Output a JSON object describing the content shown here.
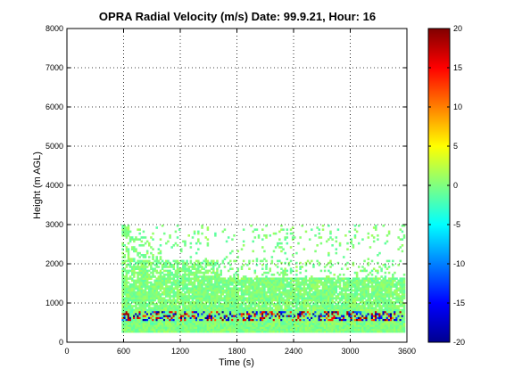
{
  "chart_data": {
    "type": "heatmap",
    "title": "OPRA Radial Velocity (m/s)  Date: 99.9.21, Hour: 16",
    "xlabel": "Time (s)",
    "ylabel": "Height (m AGL)",
    "xlim": [
      0,
      3600
    ],
    "ylim": [
      0,
      8000
    ],
    "x_ticks": [
      0,
      600,
      1200,
      1800,
      2400,
      3000,
      3600
    ],
    "y_ticks": [
      0,
      1000,
      2000,
      3000,
      4000,
      5000,
      6000,
      7000,
      8000
    ],
    "grid": true,
    "colorbar": {
      "min": -20,
      "max": 20,
      "ticks": [
        20,
        15,
        10,
        5,
        0,
        -5,
        -10,
        -15,
        -20
      ],
      "colormap": "jet"
    },
    "data_extent": {
      "time_start": 580,
      "time_end": 3580,
      "height_min": 250,
      "height_max": 3000
    },
    "velocity_layers": [
      {
        "height_from": 250,
        "height_to": 450,
        "velocity_approx": 0
      },
      {
        "height_from": 450,
        "height_to": 850,
        "velocity_approx": "mixed -20 to 20"
      },
      {
        "height_from": 850,
        "height_to": 1650,
        "velocity_approx": 0
      },
      {
        "height_from": 1650,
        "height_to": 3000,
        "velocity_approx": "sparse ~0"
      }
    ]
  }
}
